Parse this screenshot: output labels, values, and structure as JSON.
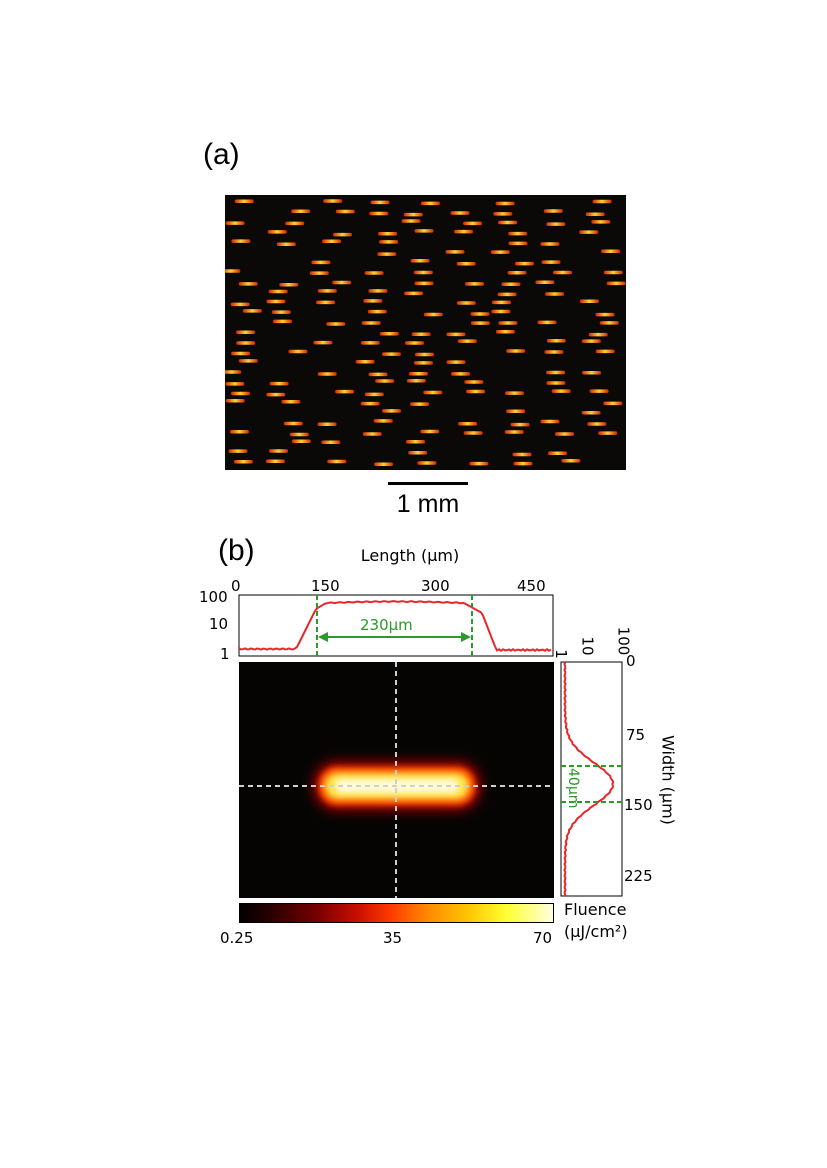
{
  "panels": {
    "a": {
      "label": "(a)",
      "scale_bar": "1 mm"
    },
    "b": {
      "label": "(b)",
      "length_axis": {
        "title": "Length (μm)",
        "ticks": [
          "0",
          "150",
          "300",
          "450"
        ]
      },
      "length_profile_axis": {
        "ticks": [
          "100",
          "10",
          "1"
        ]
      },
      "width_profile_axis": {
        "ticks": [
          "1",
          "10",
          "100"
        ]
      },
      "width_axis": {
        "title": "Width (μm)",
        "ticks": [
          "0",
          "75",
          "150",
          "225"
        ]
      },
      "length_annotation": "230μm",
      "width_annotation": "40μm",
      "colorbar": {
        "ticks": [
          "0.25",
          "35",
          "70"
        ],
        "title_line1": "Fluence",
        "title_line2": "(μJ/cm²)"
      }
    }
  },
  "colors": {
    "profile": "#e8262b",
    "annotation": "#2a9a2a",
    "crosshair": "#cfcfcf",
    "background": "#ffffff"
  }
}
